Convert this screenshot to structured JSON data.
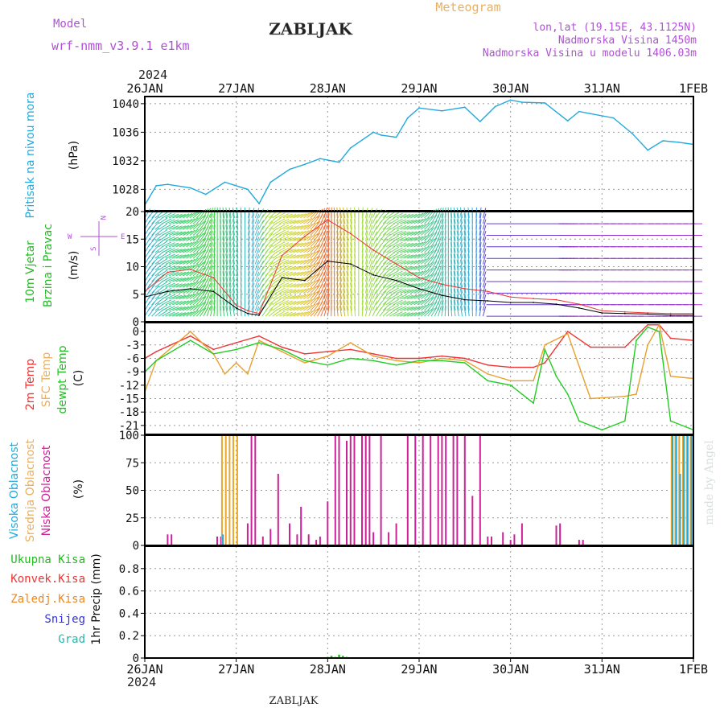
{
  "header": {
    "model_label": "Model",
    "model_name": "wrf-nmm_v3.9.1  e1km",
    "station": "ZABLJAK",
    "product": "Meteogram",
    "coords": "lon,lat (19.15E, 43.1125N)",
    "elevation": "Nadmorska Visina 1450m",
    "model_elevation": "Nadmorska Visina u modelu 1406.03m",
    "watermark": "made by Angel",
    "footer_station": "ZABLJAK"
  },
  "colors": {
    "purple": "#b050d8",
    "gold": "#e8b060",
    "cyan": "#22aadd",
    "green": "#22bb22",
    "red": "#ee3333",
    "orange": "#ee8822",
    "blue": "#3333dd",
    "teal": "#22bbaa",
    "magenta": "#cc2299"
  },
  "chart_data": [
    {
      "id": "pressure",
      "type": "line",
      "ylabel_main": "Pritisak na nivou mora",
      "ylabel_unit": "(hPa)",
      "x_axis": {
        "start": "2024-01-26T00:00",
        "end": "2024-02-01T00:00",
        "year": "2024",
        "tick_labels": [
          "26JAN",
          "27JAN",
          "28JAN",
          "29JAN",
          "30JAN",
          "31JAN",
          "1FEB"
        ]
      },
      "ylim": [
        1025,
        1041
      ],
      "yticks": [
        1028,
        1032,
        1036,
        1040
      ],
      "grid": true,
      "series": [
        {
          "color": "#22aadd",
          "x": [
            "2024-01-26T00:00",
            "2024-01-26T03:00",
            "2024-01-26T06:00",
            "2024-01-26T12:00",
            "2024-01-26T16:00",
            "2024-01-26T21:00",
            "2024-01-27T03:00",
            "2024-01-27T06:00",
            "2024-01-27T09:00",
            "2024-01-27T14:00",
            "2024-01-27T18:00",
            "2024-01-27T22:00",
            "2024-01-28T03:00",
            "2024-01-28T06:00",
            "2024-01-28T12:00",
            "2024-01-28T14:00",
            "2024-01-28T18:00",
            "2024-01-28T21:00",
            "2024-01-29T00:00",
            "2024-01-29T06:00",
            "2024-01-29T12:00",
            "2024-01-29T16:00",
            "2024-01-29T20:00",
            "2024-01-30T00:00",
            "2024-01-30T03:00",
            "2024-01-30T09:00",
            "2024-01-30T15:00",
            "2024-01-30T18:00",
            "2024-01-30T21:00",
            "2024-01-31T03:00",
            "2024-01-31T08:00",
            "2024-01-31T12:00",
            "2024-01-31T16:00",
            "2024-01-31T20:00",
            "2024-02-01T00:00"
          ],
          "values": [
            1025.8,
            1028.5,
            1028.7,
            1028.2,
            1027.3,
            1029.0,
            1028.0,
            1026.0,
            1029.0,
            1030.8,
            1031.5,
            1032.3,
            1031.8,
            1033.8,
            1036.0,
            1035.6,
            1035.3,
            1038.0,
            1039.4,
            1039.0,
            1039.5,
            1037.5,
            1039.6,
            1040.5,
            1040.2,
            1040.1,
            1037.6,
            1038.9,
            1038.6,
            1038.0,
            1035.8,
            1033.5,
            1034.8,
            1034.6,
            1034.3
          ]
        }
      ]
    },
    {
      "id": "wind",
      "type": "line",
      "ylabel_main": "10m Vjetar",
      "ylabel_sub": "Brzina i Pravac",
      "ylabel_unit": "(m/s)",
      "ylim": [
        0,
        20
      ],
      "yticks": [
        0,
        5,
        10,
        15,
        20
      ],
      "legend_compass": {
        "north": "N",
        "west": "W",
        "east": "E",
        "south": "S"
      },
      "series": [
        {
          "color": "#000000",
          "x": [
            "2024-01-26T00:00",
            "2024-01-26T06:00",
            "2024-01-26T12:00",
            "2024-01-26T18:00",
            "2024-01-27T00:00",
            "2024-01-27T03:00",
            "2024-01-27T06:00",
            "2024-01-27T12:00",
            "2024-01-27T18:00",
            "2024-01-28T00:00",
            "2024-01-28T06:00",
            "2024-01-28T12:00",
            "2024-01-28T18:00",
            "2024-01-29T00:00",
            "2024-01-29T06:00",
            "2024-01-29T12:00",
            "2024-01-29T18:00",
            "2024-01-30T00:00",
            "2024-01-30T06:00",
            "2024-01-30T12:00",
            "2024-01-30T18:00",
            "2024-01-31T00:00",
            "2024-01-31T06:00",
            "2024-01-31T12:00",
            "2024-01-31T18:00",
            "2024-02-01T00:00"
          ],
          "values": [
            4.5,
            5.5,
            6.0,
            5.5,
            2.5,
            1.5,
            1.2,
            8.0,
            7.5,
            11.0,
            10.5,
            8.5,
            7.5,
            6.0,
            4.8,
            4.0,
            3.8,
            3.5,
            3.5,
            3.2,
            2.5,
            1.6,
            1.5,
            1.4,
            1.2,
            1.2
          ]
        },
        {
          "color": "#ee3333",
          "x": [
            "2024-01-26T00:00",
            "2024-01-26T06:00",
            "2024-01-26T12:00",
            "2024-01-26T18:00",
            "2024-01-27T00:00",
            "2024-01-27T03:00",
            "2024-01-27T06:00",
            "2024-01-27T12:00",
            "2024-01-27T18:00",
            "2024-01-28T00:00",
            "2024-01-28T06:00",
            "2024-01-28T12:00",
            "2024-01-28T18:00",
            "2024-01-29T00:00",
            "2024-01-29T06:00",
            "2024-01-29T12:00",
            "2024-01-29T18:00",
            "2024-01-30T00:00",
            "2024-01-30T06:00",
            "2024-01-30T12:00",
            "2024-01-30T18:00",
            "2024-01-31T00:00",
            "2024-01-31T06:00",
            "2024-01-31T12:00",
            "2024-01-31T18:00",
            "2024-02-01T00:00"
          ],
          "values": [
            5.5,
            9.0,
            9.5,
            8.0,
            3.0,
            2.0,
            1.5,
            12.0,
            15.5,
            18.5,
            16.0,
            13.0,
            10.5,
            8.0,
            6.8,
            6.0,
            5.5,
            4.5,
            4.2,
            4.0,
            3.2,
            2.0,
            1.8,
            1.6,
            1.5,
            1.5
          ]
        }
      ]
    },
    {
      "id": "temperature",
      "type": "line",
      "ylabel_lines": [
        "2m Temp",
        "SFC Temp",
        "dewpt Temp"
      ],
      "ylabel_unit": "(C)",
      "ylim": [
        -23,
        2
      ],
      "yticks": [
        0,
        -3,
        -6,
        -9,
        -12,
        -15,
        -18,
        -21
      ],
      "series": [
        {
          "name": "2m Temp",
          "color": "#ee3333",
          "x": [
            "2024-01-26T00:00",
            "2024-01-26T03:00",
            "2024-01-26T12:00",
            "2024-01-26T18:00",
            "2024-01-27T00:00",
            "2024-01-27T06:00",
            "2024-01-27T12:00",
            "2024-01-27T18:00",
            "2024-01-28T00:00",
            "2024-01-28T06:00",
            "2024-01-28T12:00",
            "2024-01-28T18:00",
            "2024-01-29T00:00",
            "2024-01-29T06:00",
            "2024-01-29T12:00",
            "2024-01-29T18:00",
            "2024-01-30T00:00",
            "2024-01-30T06:00",
            "2024-01-30T09:00",
            "2024-01-30T15:00",
            "2024-01-30T21:00",
            "2024-01-31T06:00",
            "2024-01-31T12:00",
            "2024-01-31T15:00",
            "2024-01-31T18:00",
            "2024-02-01T00:00"
          ],
          "values": [
            -6,
            -4.5,
            -1,
            -4,
            -2.5,
            -1,
            -3.5,
            -5,
            -4.5,
            -4,
            -5,
            -6,
            -6,
            -5.5,
            -6,
            -7.5,
            -8,
            -8,
            -7,
            0,
            -3.5,
            -3.5,
            1.5,
            1.5,
            -1.5,
            -2
          ]
        },
        {
          "name": "SFC Temp",
          "color": "#e8a030",
          "x": [
            "2024-01-26T00:00",
            "2024-01-26T03:00",
            "2024-01-26T12:00",
            "2024-01-26T18:00",
            "2024-01-26T21:00",
            "2024-01-27T00:00",
            "2024-01-27T03:00",
            "2024-01-27T06:00",
            "2024-01-27T12:00",
            "2024-01-27T18:00",
            "2024-01-28T00:00",
            "2024-01-28T06:00",
            "2024-01-28T12:00",
            "2024-01-28T18:00",
            "2024-01-29T00:00",
            "2024-01-29T06:00",
            "2024-01-29T12:00",
            "2024-01-29T18:00",
            "2024-01-30T00:00",
            "2024-01-30T06:00",
            "2024-01-30T09:00",
            "2024-01-30T15:00",
            "2024-01-30T21:00",
            "2024-01-31T06:00",
            "2024-01-31T09:00",
            "2024-01-31T12:00",
            "2024-01-31T15:00",
            "2024-01-31T18:00",
            "2024-02-01T00:00"
          ],
          "values": [
            -13.5,
            -6.5,
            0,
            -5,
            -9.5,
            -7,
            -9.5,
            -2,
            -4.5,
            -7,
            -5.5,
            -2.5,
            -5.5,
            -6.5,
            -7,
            -6,
            -6.5,
            -9.5,
            -11,
            -11,
            -3,
            -0.5,
            -15,
            -14.5,
            -14,
            -3,
            1.5,
            -10,
            -10.5
          ]
        },
        {
          "name": "dewpt Temp",
          "color": "#22cc22",
          "x": [
            "2024-01-26T00:00",
            "2024-01-26T03:00",
            "2024-01-26T12:00",
            "2024-01-26T18:00",
            "2024-01-27T00:00",
            "2024-01-27T06:00",
            "2024-01-27T12:00",
            "2024-01-27T18:00",
            "2024-01-28T00:00",
            "2024-01-28T06:00",
            "2024-01-28T12:00",
            "2024-01-28T18:00",
            "2024-01-29T00:00",
            "2024-01-29T06:00",
            "2024-01-29T12:00",
            "2024-01-29T18:00",
            "2024-01-30T00:00",
            "2024-01-30T06:00",
            "2024-01-30T09:00",
            "2024-01-30T12:00",
            "2024-01-30T15:00",
            "2024-01-30T18:00",
            "2024-01-31T00:00",
            "2024-01-31T06:00",
            "2024-01-31T09:00",
            "2024-01-31T12:00",
            "2024-01-31T15:00",
            "2024-01-31T18:00",
            "2024-02-01T00:00"
          ],
          "values": [
            -9,
            -6.5,
            -2,
            -5,
            -4,
            -2.5,
            -4,
            -6.5,
            -7.5,
            -6,
            -6.5,
            -7.5,
            -6.5,
            -6.5,
            -7,
            -11,
            -12,
            -16,
            -4,
            -10,
            -14,
            -20,
            -22,
            -20,
            -2,
            1,
            0,
            -20,
            -22
          ]
        }
      ]
    },
    {
      "id": "clouds",
      "type": "bar",
      "ylabel_lines": [
        "Visoka Oblacnost",
        "Srednja Oblacnost",
        "Niska Oblacnost"
      ],
      "ylabel_unit": "(%)",
      "ylim": [
        0,
        100
      ],
      "yticks": [
        0,
        25,
        50,
        75,
        100
      ],
      "series": [
        {
          "name": "Niska Oblacnost",
          "color": "#cc2299",
          "x": [
            "2024-01-26T06:00",
            "2024-01-26T07:00",
            "2024-01-26T19:00",
            "2024-01-26T20:00",
            "2024-01-27T03:00",
            "2024-01-27T04:00",
            "2024-01-27T05:00",
            "2024-01-27T07:00",
            "2024-01-27T09:00",
            "2024-01-27T11:00",
            "2024-01-27T14:00",
            "2024-01-27T16:00",
            "2024-01-27T17:00",
            "2024-01-27T19:00",
            "2024-01-27T21:00",
            "2024-01-27T22:00",
            "2024-01-28T00:00",
            "2024-01-28T02:00",
            "2024-01-28T03:00",
            "2024-01-28T05:00",
            "2024-01-28T06:00",
            "2024-01-28T07:00",
            "2024-01-28T09:00",
            "2024-01-28T10:00",
            "2024-01-28T11:00",
            "2024-01-28T12:00",
            "2024-01-28T14:00",
            "2024-01-28T16:00",
            "2024-01-28T18:00",
            "2024-01-28T21:00",
            "2024-01-28T23:00",
            "2024-01-29T01:00",
            "2024-01-29T03:00",
            "2024-01-29T05:00",
            "2024-01-29T06:00",
            "2024-01-29T07:00",
            "2024-01-29T09:00",
            "2024-01-29T10:00",
            "2024-01-29T12:00",
            "2024-01-29T14:00",
            "2024-01-29T16:00",
            "2024-01-29T18:00",
            "2024-01-29T19:00",
            "2024-01-29T22:00",
            "2024-01-30T00:00",
            "2024-01-30T01:00",
            "2024-01-30T03:00",
            "2024-01-30T12:00",
            "2024-01-30T13:00",
            "2024-01-30T18:00",
            "2024-01-30T19:00"
          ],
          "values": [
            10,
            10,
            8,
            8,
            20,
            100,
            100,
            8,
            15,
            65,
            20,
            10,
            35,
            10,
            5,
            8,
            40,
            100,
            100,
            95,
            100,
            100,
            100,
            100,
            100,
            12,
            100,
            12,
            20,
            100,
            100,
            100,
            100,
            100,
            100,
            100,
            100,
            100,
            100,
            45,
            100,
            8,
            8,
            12,
            5,
            10,
            20,
            18,
            20,
            5,
            5
          ]
        },
        {
          "name": "Srednja Oblacnost",
          "color": "#e8a830",
          "x": [
            "2024-01-26T20:00",
            "2024-01-26T21:00",
            "2024-01-26T22:00",
            "2024-01-26T23:00",
            "2024-01-27T00:00",
            "2024-01-31T18:00",
            "2024-01-31T19:00",
            "2024-01-31T20:00",
            "2024-01-31T21:00",
            "2024-01-31T22:00",
            "2024-01-31T23:00"
          ],
          "values": [
            100,
            100,
            100,
            100,
            100,
            100,
            100,
            100,
            100,
            100,
            100
          ]
        },
        {
          "name": "Visoka Oblacnost",
          "color": "#22aadd",
          "x": [
            "2024-01-26T20:00",
            "2024-01-31T18:00",
            "2024-01-31T19:00",
            "2024-01-31T20:00",
            "2024-01-31T21:00",
            "2024-01-31T22:00",
            "2024-01-31T23:00"
          ],
          "values": [
            10,
            100,
            100,
            65,
            100,
            100,
            100
          ]
        }
      ]
    },
    {
      "id": "precip",
      "type": "bar",
      "ylabel_unit": "1hr Precip (mm)",
      "legend": [
        "Ukupna Kisa",
        "Konvek.Kisa",
        "Zaledj.Kisa",
        "Snijeg",
        "Grad"
      ],
      "legend_colors": [
        "#22bb22",
        "#ee3333",
        "#ee8822",
        "#3333dd",
        "#22bbaa"
      ],
      "ylim": [
        0,
        1
      ],
      "yticks": [
        0,
        0.2,
        0.4,
        0.6,
        0.8
      ],
      "series": [
        {
          "name": "Ukupna Kisa",
          "color": "#22bb22",
          "x": [
            "2024-01-28T00:00",
            "2024-01-28T01:00",
            "2024-01-28T02:00",
            "2024-01-28T03:00",
            "2024-01-28T04:00",
            "2024-01-28T05:00"
          ],
          "values": [
            0.01,
            0.02,
            0.01,
            0.03,
            0.02,
            0.01
          ]
        }
      ]
    }
  ]
}
